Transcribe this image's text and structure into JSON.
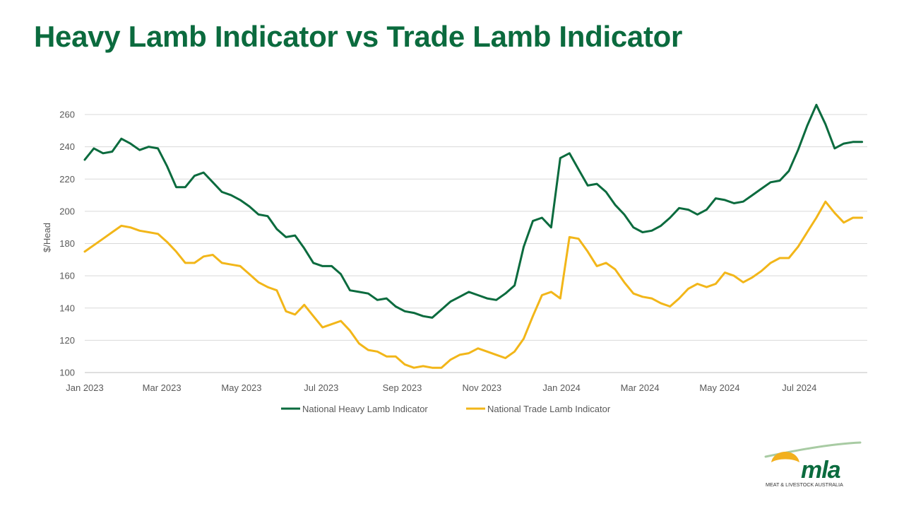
{
  "slide": {
    "title": "Heavy Lamb Indicator vs Trade Lamb Indicator",
    "title_color": "#0b6b3e"
  },
  "logo": {
    "wordmark": "mla",
    "tagline": "MEAT & LIVESTOCK AUSTRALIA",
    "green": "#0b6b3e",
    "yellow": "#f2b01e",
    "swoosh": "#a8cba3"
  },
  "chart_data": {
    "type": "line",
    "title": "",
    "xlabel": "",
    "ylabel": "$/Head",
    "ylim": [
      100,
      260
    ],
    "yticks": [
      100,
      120,
      140,
      160,
      180,
      200,
      220,
      240,
      260
    ],
    "grid": true,
    "legend_position": "bottom",
    "x_start": "2023-01-01",
    "x_end": "2024-08-22",
    "x_tick_labels": [
      {
        "date": "2023-01-01",
        "label": "Jan 2023"
      },
      {
        "date": "2023-03-01",
        "label": "Mar 2023"
      },
      {
        "date": "2023-05-01",
        "label": "May 2023"
      },
      {
        "date": "2023-07-01",
        "label": "Jul 2023"
      },
      {
        "date": "2023-09-01",
        "label": "Sep 2023"
      },
      {
        "date": "2023-11-01",
        "label": "Nov 2023"
      },
      {
        "date": "2024-01-01",
        "label": "Jan 2024"
      },
      {
        "date": "2024-03-01",
        "label": "Mar 2024"
      },
      {
        "date": "2024-05-01",
        "label": "May 2024"
      },
      {
        "date": "2024-07-01",
        "label": "Jul 2024"
      }
    ],
    "x": [
      "2023-01-01",
      "2023-01-08",
      "2023-01-15",
      "2023-01-22",
      "2023-01-29",
      "2023-02-05",
      "2023-02-12",
      "2023-02-19",
      "2023-02-26",
      "2023-03-05",
      "2023-03-12",
      "2023-03-19",
      "2023-03-26",
      "2023-04-02",
      "2023-04-09",
      "2023-04-16",
      "2023-04-23",
      "2023-04-30",
      "2023-05-07",
      "2023-05-14",
      "2023-05-21",
      "2023-05-28",
      "2023-06-04",
      "2023-06-11",
      "2023-06-18",
      "2023-06-25",
      "2023-07-02",
      "2023-07-09",
      "2023-07-16",
      "2023-07-23",
      "2023-07-30",
      "2023-08-06",
      "2023-08-13",
      "2023-08-20",
      "2023-08-27",
      "2023-09-03",
      "2023-09-10",
      "2023-09-17",
      "2023-09-24",
      "2023-10-01",
      "2023-10-08",
      "2023-10-15",
      "2023-10-22",
      "2023-10-29",
      "2023-11-05",
      "2023-11-12",
      "2023-11-19",
      "2023-11-26",
      "2023-12-03",
      "2023-12-10",
      "2023-12-17",
      "2023-12-24",
      "2023-12-31",
      "2024-01-07",
      "2024-01-14",
      "2024-01-21",
      "2024-01-28",
      "2024-02-04",
      "2024-02-11",
      "2024-02-18",
      "2024-02-25",
      "2024-03-03",
      "2024-03-10",
      "2024-03-17",
      "2024-03-24",
      "2024-03-31",
      "2024-04-07",
      "2024-04-14",
      "2024-04-21",
      "2024-04-28",
      "2024-05-05",
      "2024-05-12",
      "2024-05-19",
      "2024-05-26",
      "2024-06-02",
      "2024-06-09",
      "2024-06-16",
      "2024-06-23",
      "2024-06-30",
      "2024-07-07",
      "2024-07-14",
      "2024-07-21",
      "2024-07-28",
      "2024-08-04",
      "2024-08-11",
      "2024-08-18"
    ],
    "series": [
      {
        "name": "National Heavy Lamb Indicator",
        "color": "#0b6b3e",
        "values": [
          232,
          239,
          236,
          237,
          245,
          242,
          238,
          240,
          239,
          228,
          215,
          215,
          222,
          224,
          218,
          212,
          210,
          207,
          203,
          198,
          197,
          189,
          184,
          185,
          177,
          168,
          166,
          166,
          161,
          151,
          150,
          149,
          145,
          146,
          141,
          138,
          137,
          135,
          134,
          139,
          144,
          147,
          150,
          148,
          146,
          145,
          149,
          154,
          178,
          194,
          196,
          190,
          233,
          236,
          226,
          216,
          217,
          212,
          204,
          198,
          190,
          187,
          188,
          191,
          196,
          202,
          201,
          198,
          201,
          208,
          207,
          205,
          206,
          210,
          214,
          218,
          219,
          225,
          238,
          253,
          266,
          254,
          239,
          242,
          243,
          243
        ],
        "plot_to": 85
      },
      {
        "name": "National Trade Lamb Indicator",
        "color": "#f2b619",
        "values": [
          175,
          179,
          183,
          187,
          191,
          190,
          188,
          187,
          186,
          181,
          175,
          168,
          168,
          172,
          173,
          168,
          167,
          166,
          161,
          156,
          153,
          151,
          138,
          136,
          142,
          135,
          128,
          130,
          132,
          126,
          118,
          114,
          113,
          110,
          110,
          105,
          103,
          104,
          103,
          103,
          108,
          111,
          112,
          115,
          113,
          111,
          109,
          113,
          121,
          135,
          148,
          150,
          146,
          184,
          183,
          175,
          166,
          168,
          164,
          156,
          149,
          147,
          146,
          143,
          141,
          146,
          152,
          155,
          153,
          155,
          162,
          160,
          156,
          159,
          163,
          168,
          171,
          171,
          178,
          187,
          196,
          206,
          199,
          193,
          196,
          196
        ],
        "plot_to": 85
      }
    ]
  }
}
